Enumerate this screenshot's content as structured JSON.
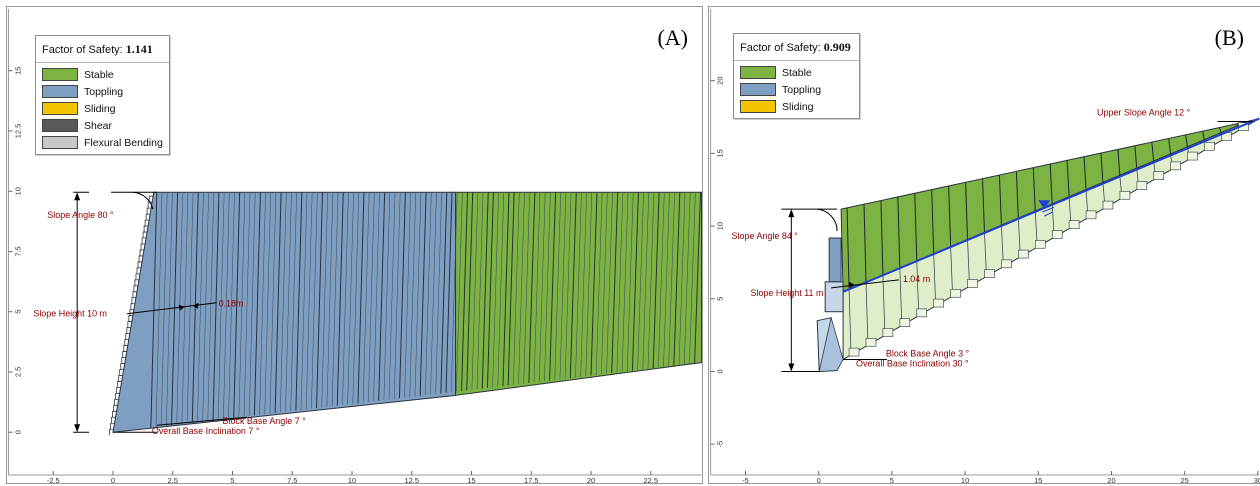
{
  "colors": {
    "stable": "#7cb342",
    "toppling": "#7f9fc2",
    "sliding": "#f5c400",
    "shear": "#595959",
    "flexural": "#c8c8c8",
    "annotation": "#8b0000",
    "water": "#1f3fd6"
  },
  "panel_a": {
    "label": "(A)",
    "legend": {
      "title": "Factor of Safety:",
      "value": "1.141",
      "items": [
        "Stable",
        "Toppling",
        "Sliding",
        "Shear",
        "Flexural Bending"
      ]
    },
    "annotations": {
      "slope_angle": "Slope Angle 80 °",
      "slope_height": "Slope Height  10 m",
      "block_width": "0.18m",
      "block_base_angle": "Block Base Angle 7 °",
      "overall_base": "Overall Base Inclination 7 °"
    },
    "y_ticks": [
      "0",
      "2.5",
      "5",
      "7.5",
      "10",
      "12.5",
      "15"
    ],
    "x_ticks": [
      "-2.5",
      "0",
      "2.5",
      "5",
      "7.5",
      "10",
      "12.5",
      "15",
      "17.5",
      "20",
      "22.5"
    ]
  },
  "panel_b": {
    "label": "(B)",
    "legend": {
      "title": "Factor of Safety:",
      "value": "0.909",
      "items": [
        "Stable",
        "Toppling",
        "Sliding"
      ]
    },
    "annotations": {
      "upper_slope_angle": "Upper Slope Angle 12 °",
      "slope_angle": "Slope Angle 84 °",
      "slope_height": "Slope Height  11 m",
      "block_width": "1.04 m",
      "block_base_angle": "Block Base Angle 3 °",
      "overall_base": "Overall Base Inclination 30 °"
    },
    "y_ticks": [
      "-5",
      "0",
      "5",
      "10",
      "15",
      "20"
    ],
    "x_ticks": [
      "-5",
      "0",
      "5",
      "10",
      "15",
      "20",
      "25",
      "30"
    ]
  }
}
